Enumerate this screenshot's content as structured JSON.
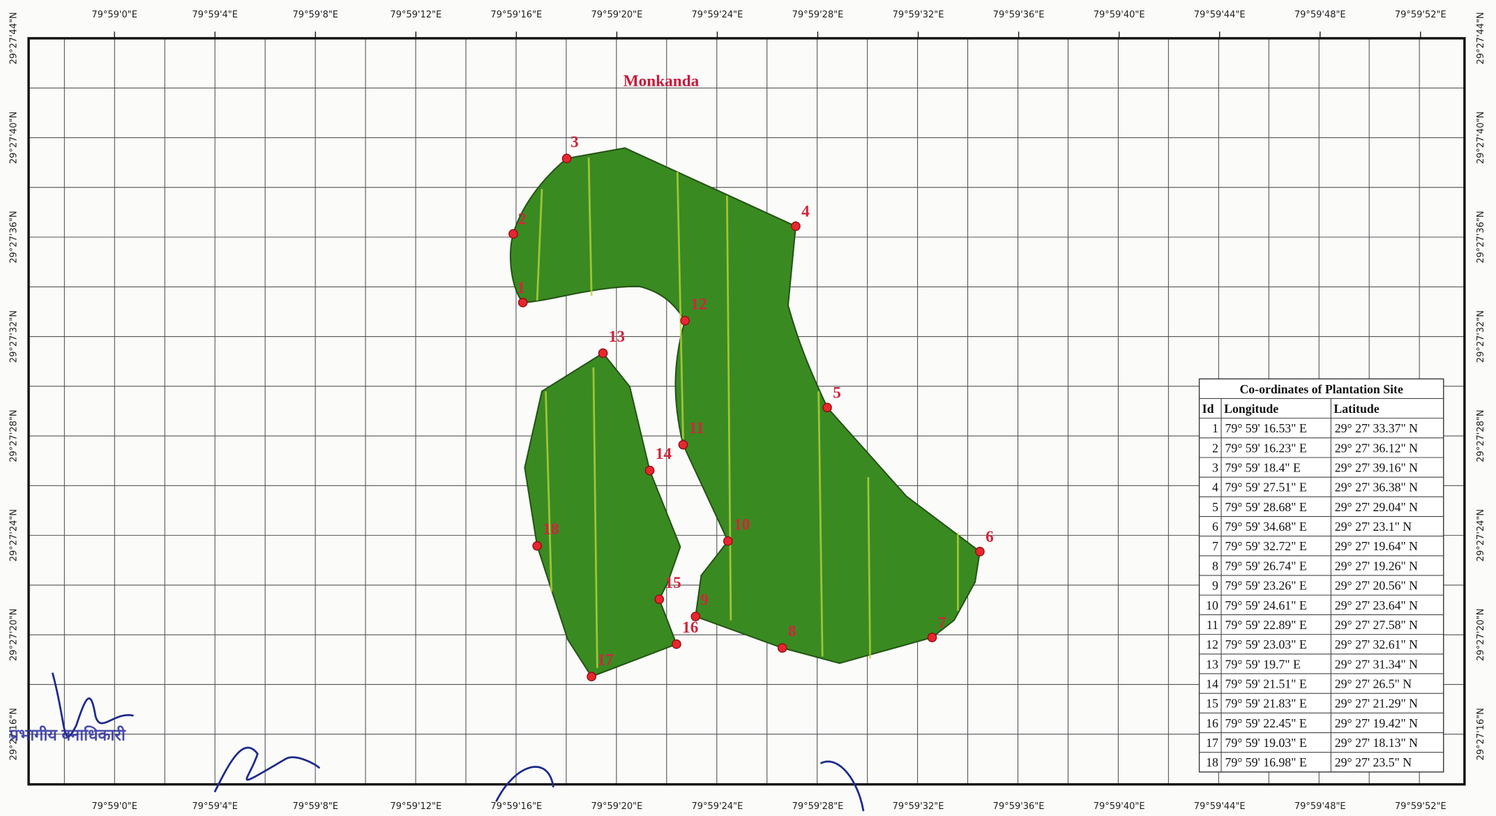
{
  "map": {
    "title": "Monkanda",
    "lon_labels_top": [
      "79°59'0\"E",
      "79°59'4\"E",
      "79°59'8\"E",
      "79°59'12\"E",
      "79°59'16\"E",
      "79°59'20\"E",
      "79°59'24\"E",
      "79°59'28\"E",
      "79°59'32\"E",
      "79°59'36\"E",
      "79°59'40\"E",
      "79°59'44\"E",
      "79°59'48\"E",
      "79°59'52\"E"
    ],
    "lon_labels_bottom": [
      "79°59'0\"E",
      "79°59'4\"E",
      "79°59'8\"E",
      "79°59'12\"E",
      "79°59'16\"E",
      "79°59'20\"E",
      "79°59'24\"E",
      "79°59'28\"E",
      "79°59'32\"E",
      "79°59'36\"E",
      "79°59'40\"E",
      "79°59'44\"E",
      "79°59'48\"E",
      "79°59'52\"E"
    ],
    "lat_labels_left": [
      "29°27'44\"N",
      "29°27'40\"N",
      "29°27'36\"N",
      "29°27'32\"N",
      "29°27'28\"N",
      "29°27'24\"N",
      "29°27'20\"N",
      "29°27'16\"N"
    ],
    "lat_labels_right": [
      "29°27'44\"N",
      "29°27'40\"N",
      "29°27'36\"N",
      "29°27'32\"N",
      "29°27'28\"N",
      "29°27'24\"N",
      "29°27'20\"N",
      "29°27'16\"N"
    ]
  },
  "table": {
    "title": "Co-ordinates of Plantation Site",
    "columns": [
      "Id",
      "Longitude",
      "Latitude"
    ],
    "rows": [
      [
        "1",
        "79° 59' 16.53\" E",
        "29° 27' 33.37\" N"
      ],
      [
        "2",
        "79° 59' 16.23\" E",
        "29° 27' 36.12\" N"
      ],
      [
        "3",
        "79° 59' 18.4\" E",
        "29° 27' 39.16\" N"
      ],
      [
        "4",
        "79° 59' 27.51\" E",
        "29° 27' 36.38\" N"
      ],
      [
        "5",
        "79° 59' 28.68\" E",
        "29° 27' 29.04\" N"
      ],
      [
        "6",
        "79° 59' 34.68\" E",
        "29° 27' 23.1\" N"
      ],
      [
        "7",
        "79° 59' 32.72\" E",
        "29° 27' 19.64\" N"
      ],
      [
        "8",
        "79° 59' 26.74\" E",
        "29° 27' 19.26\" N"
      ],
      [
        "9",
        "79° 59' 23.26\" E",
        "29° 27' 20.56\" N"
      ],
      [
        "10",
        "79° 59' 24.61\" E",
        "29° 27' 23.64\" N"
      ],
      [
        "11",
        "79° 59' 22.89\" E",
        "29° 27' 27.58\" N"
      ],
      [
        "12",
        "79° 59' 23.03\" E",
        "29° 27' 32.61\" N"
      ],
      [
        "13",
        "79° 59' 19.7\" E",
        "29° 27' 31.34\" N"
      ],
      [
        "14",
        "79° 59' 21.51\" E",
        "29° 27' 26.5\" N"
      ],
      [
        "15",
        "79° 59' 21.83\" E",
        "29° 27' 21.29\" N"
      ],
      [
        "16",
        "79° 59' 22.45\" E",
        "29° 27' 19.42\" N"
      ],
      [
        "17",
        "79° 59' 19.03\" E",
        "29° 27' 18.13\" N"
      ],
      [
        "18",
        "79° 59' 16.98\" E",
        "29° 27' 23.5\" N"
      ]
    ]
  }
}
